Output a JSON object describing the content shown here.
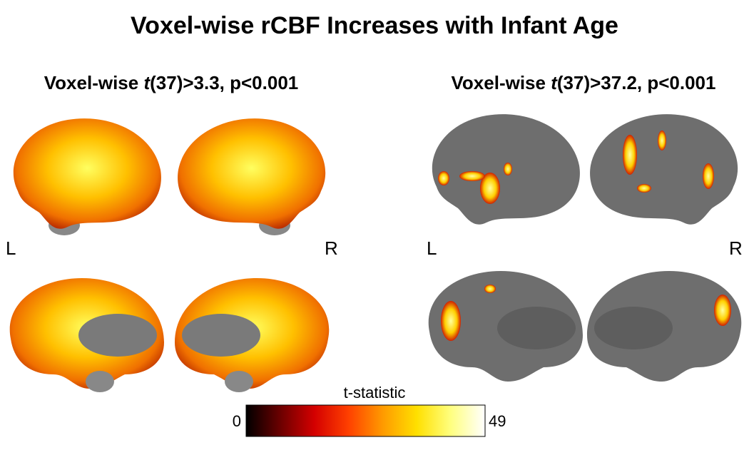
{
  "title": "Voxel-wise rCBF Increases with Infant Age",
  "panels": [
    {
      "subtitle": [
        "Voxel-wise ",
        "t",
        "(37)>3.3, p<0.001"
      ],
      "left_label": "L",
      "right_label": "R"
    },
    {
      "subtitle": [
        "Voxel-wise ",
        "t",
        "(37)>37.2, p<0.001"
      ],
      "left_label": "L",
      "right_label": "R"
    }
  ],
  "colorbar": {
    "label": "t-statistic",
    "min": 0,
    "max": 49,
    "colors": [
      "#000000",
      "#6b0000",
      "#d40000",
      "#ff4000",
      "#ff9a00",
      "#ffe000",
      "#ffff80",
      "#ffffff"
    ]
  }
}
